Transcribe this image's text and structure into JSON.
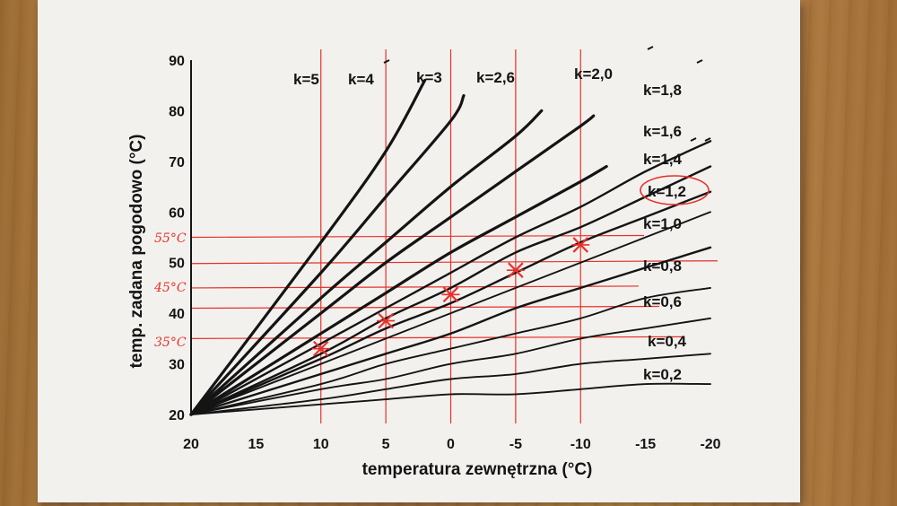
{
  "chart_data": {
    "type": "line",
    "title": "",
    "xlabel": "temperatura zewnętrzna  (°C)",
    "ylabel": "temp. zadana pogodowo   (°C)",
    "x_ticks": [
      "20",
      "15",
      "10",
      "5",
      "0",
      "-5",
      "-10",
      "-15",
      "-20"
    ],
    "y_ticks": [
      "20",
      "30",
      "40",
      "50",
      "60",
      "70",
      "80",
      "90"
    ],
    "xlim": [
      20,
      -20
    ],
    "ylim": [
      20,
      90
    ],
    "series": [
      {
        "name": "k=5",
        "k": 5.0,
        "points": [
          [
            20,
            20
          ],
          [
            10,
            54
          ],
          [
            5,
            72
          ],
          [
            2,
            86
          ]
        ]
      },
      {
        "name": "k=4",
        "k": 4.0,
        "points": [
          [
            20,
            20
          ],
          [
            10,
            48
          ],
          [
            5,
            63
          ],
          [
            0,
            78
          ],
          [
            -1,
            83
          ]
        ]
      },
      {
        "name": "k=3",
        "k": 3.0,
        "points": [
          [
            20,
            20
          ],
          [
            10,
            43
          ],
          [
            5,
            54
          ],
          [
            0,
            65
          ],
          [
            -5,
            75
          ],
          [
            -7,
            80
          ]
        ]
      },
      {
        "name": "k=2,6",
        "k": 2.6,
        "points": [
          [
            20,
            20
          ],
          [
            10,
            40
          ],
          [
            5,
            50
          ],
          [
            0,
            59
          ],
          [
            -5,
            68
          ],
          [
            -10,
            77
          ],
          [
            -11,
            79
          ]
        ]
      },
      {
        "name": "k=2,0",
        "k": 2.0,
        "points": [
          [
            20,
            20
          ],
          [
            10,
            36
          ],
          [
            5,
            44
          ],
          [
            0,
            52
          ],
          [
            -5,
            59
          ],
          [
            -10,
            66
          ],
          [
            -12,
            69
          ]
        ]
      },
      {
        "name": "k=1,8",
        "k": 1.8,
        "points": [
          [
            20,
            20
          ],
          [
            10,
            34
          ],
          [
            5,
            41
          ],
          [
            0,
            48
          ],
          [
            -5,
            55
          ],
          [
            -10,
            61
          ],
          [
            -15,
            68
          ],
          [
            -20,
            74
          ]
        ]
      },
      {
        "name": "k=1,6",
        "k": 1.6,
        "points": [
          [
            20,
            20
          ],
          [
            10,
            32
          ],
          [
            5,
            39
          ],
          [
            0,
            45
          ],
          [
            -5,
            52
          ],
          [
            -10,
            57
          ],
          [
            -15,
            63
          ],
          [
            -20,
            69
          ]
        ]
      },
      {
        "name": "k=1,4",
        "k": 1.4,
        "points": [
          [
            20,
            20
          ],
          [
            10,
            31
          ],
          [
            5,
            37
          ],
          [
            0,
            42
          ],
          [
            -5,
            48
          ],
          [
            -10,
            54
          ],
          [
            -15,
            59
          ],
          [
            -20,
            64
          ]
        ]
      },
      {
        "name": "k=1,2",
        "k": 1.2,
        "points": [
          [
            20,
            20
          ],
          [
            10,
            30
          ],
          [
            5,
            35
          ],
          [
            0,
            40
          ],
          [
            -5,
            45
          ],
          [
            -10,
            50
          ],
          [
            -15,
            55
          ],
          [
            -20,
            60
          ]
        ]
      },
      {
        "name": "k=1,0",
        "k": 1.0,
        "points": [
          [
            20,
            20
          ],
          [
            10,
            28
          ],
          [
            5,
            32
          ],
          [
            0,
            36
          ],
          [
            -5,
            41
          ],
          [
            -10,
            45
          ],
          [
            -15,
            49
          ],
          [
            -20,
            53
          ]
        ]
      },
      {
        "name": "k=0,8",
        "k": 0.8,
        "points": [
          [
            20,
            20
          ],
          [
            10,
            26
          ],
          [
            5,
            30
          ],
          [
            0,
            33
          ],
          [
            -5,
            36
          ],
          [
            -10,
            39
          ],
          [
            -15,
            43
          ],
          [
            -20,
            45
          ]
        ]
      },
      {
        "name": "k=0,6",
        "k": 0.6,
        "points": [
          [
            20,
            20
          ],
          [
            10,
            25
          ],
          [
            5,
            27
          ],
          [
            0,
            30
          ],
          [
            -5,
            32
          ],
          [
            -10,
            35
          ],
          [
            -15,
            37
          ],
          [
            -20,
            39
          ]
        ]
      },
      {
        "name": "k=0,4",
        "k": 0.4,
        "points": [
          [
            20,
            20
          ],
          [
            10,
            23
          ],
          [
            5,
            25
          ],
          [
            0,
            27
          ],
          [
            -5,
            28
          ],
          [
            -10,
            30
          ],
          [
            -15,
            31
          ],
          [
            -20,
            32
          ]
        ]
      },
      {
        "name": "k=0,2",
        "k": 0.2,
        "points": [
          [
            20,
            20
          ],
          [
            10,
            22
          ],
          [
            5,
            23
          ],
          [
            0,
            24
          ],
          [
            -5,
            24
          ],
          [
            -10,
            25
          ],
          [
            -15,
            26
          ],
          [
            -20,
            26
          ]
        ]
      }
    ],
    "highlighted_series": "k=1,2",
    "marked_points": [
      [
        10,
        33
      ],
      [
        5,
        38.5
      ],
      [
        0,
        43.7
      ],
      [
        -5,
        48.5
      ],
      [
        -10,
        53.5
      ]
    ],
    "handwritten_labels": [
      "55°C",
      "45°C",
      "35°C"
    ],
    "red_annotation_lines": {
      "vertical_x": [
        10,
        5,
        0,
        -5,
        -10
      ],
      "horizontal_y": [
        55,
        50,
        45,
        41,
        35
      ]
    },
    "grid": false,
    "legend": "labels at curve ends",
    "colors": {
      "curves": "#141414",
      "annotations": "#e8302a",
      "paper": "#f3f1ee"
    }
  }
}
